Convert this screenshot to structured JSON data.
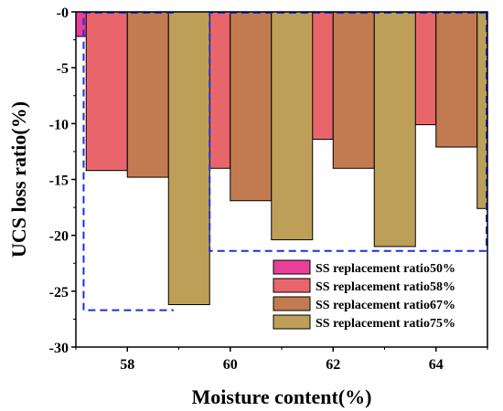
{
  "chart_data": {
    "type": "bar",
    "xlabel": "Moisture content(%)",
    "ylabel": "UCS loss ratio(%)",
    "xlim": [
      57.0,
      65.0
    ],
    "ylim": [
      -30,
      0
    ],
    "x_ticks": [
      58,
      60,
      62,
      64
    ],
    "y_ticks": [
      0,
      -5,
      -10,
      -15,
      -20,
      -25,
      -30
    ],
    "y_tick_labels": [
      "-0",
      "-5",
      "-10",
      "-15",
      "-20",
      "-25",
      "-30"
    ],
    "legend_position": "bottom-right",
    "series": [
      {
        "name": "SS replacement ratio50%",
        "color": "#E8409A",
        "bars": [
          {
            "x": 57,
            "value": -2.2
          }
        ]
      },
      {
        "name": "SS replacement ratio58%",
        "color": "#E8666B",
        "bars": [
          {
            "x": 57.6,
            "value": -14.2
          },
          {
            "x": 59.6,
            "value": -14.0
          },
          {
            "x": 61.6,
            "value": -11.4
          },
          {
            "x": 63.6,
            "value": -10.1
          }
        ]
      },
      {
        "name": "SS replacement ratio67%",
        "color": "#C27B50",
        "bars": [
          {
            "x": 58.4,
            "value": -14.8
          },
          {
            "x": 60.4,
            "value": -16.9
          },
          {
            "x": 62.4,
            "value": -14.0
          },
          {
            "x": 64.4,
            "value": -12.1
          }
        ]
      },
      {
        "name": "SS replacement ratio75%",
        "color": "#BE9F58",
        "bars": [
          {
            "x": 59.2,
            "value": -26.2
          },
          {
            "x": 61.2,
            "value": -20.4
          },
          {
            "x": 63.2,
            "value": -21.0
          },
          {
            "x": 65.2,
            "value": -17.6
          }
        ]
      }
    ],
    "highlight_boxes": [
      {
        "x_start": 57.15,
        "x_end": 58.9,
        "y_top": 0,
        "y_bottom": -26.7,
        "color": "#1A2FE0"
      },
      {
        "x_start": 59.6,
        "x_end": 65.0,
        "y_top": 0,
        "y_bottom": -21.4,
        "color": "#1A2FE0"
      }
    ]
  }
}
